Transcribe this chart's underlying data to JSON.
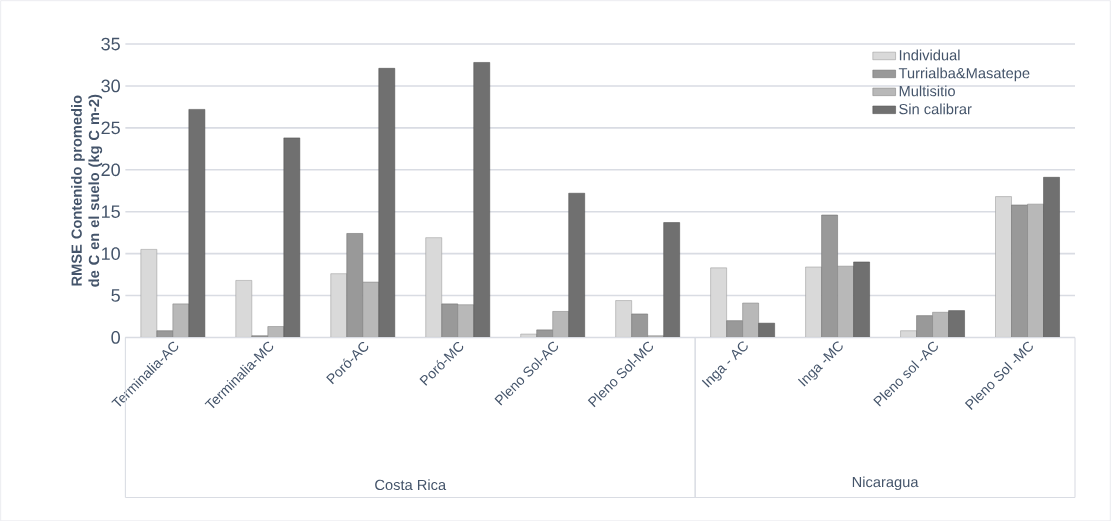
{
  "chart_data": {
    "type": "bar",
    "ylabel": "RMSE Contenido promedio de C en el suelo (kg C m-2)",
    "categories": [
      "Terminalia-AC",
      "Terminalia-MC",
      "Poró-AC",
      "Poró-MC",
      "Pleno Sol-AC",
      "Pleno Sol-MC",
      "Inga - AC",
      "Inga -MC",
      "Pleno sol -AC",
      "Pleno Sol -MC"
    ],
    "series": [
      {
        "name": "Individual",
        "color": "#d9d9d9",
        "values": [
          10.5,
          6.8,
          7.6,
          11.9,
          0.4,
          4.4,
          8.3,
          8.4,
          0.8,
          16.8
        ]
      },
      {
        "name": "Turrialba&Masatepe",
        "color": "#999999",
        "values": [
          0.8,
          0.2,
          12.4,
          4.0,
          0.9,
          2.8,
          2.0,
          14.6,
          2.6,
          15.8
        ]
      },
      {
        "name": "Multisitio",
        "color": "#b8b8b8",
        "values": [
          4.0,
          1.3,
          6.6,
          3.9,
          3.1,
          0.2,
          4.1,
          8.5,
          3.0,
          15.9
        ]
      },
      {
        "name": "Sin calibrar",
        "color": "#707070",
        "values": [
          27.2,
          23.8,
          32.1,
          32.8,
          17.2,
          13.7,
          1.7,
          9.0,
          3.2,
          19.1
        ]
      }
    ],
    "ylim": [
      0,
      35
    ],
    "yticks": [
      0,
      5,
      10,
      15,
      20,
      25,
      30,
      35
    ],
    "grid": "y",
    "legend": "top right",
    "annotations": [
      "Costa Rica",
      "Nicaragua"
    ]
  }
}
